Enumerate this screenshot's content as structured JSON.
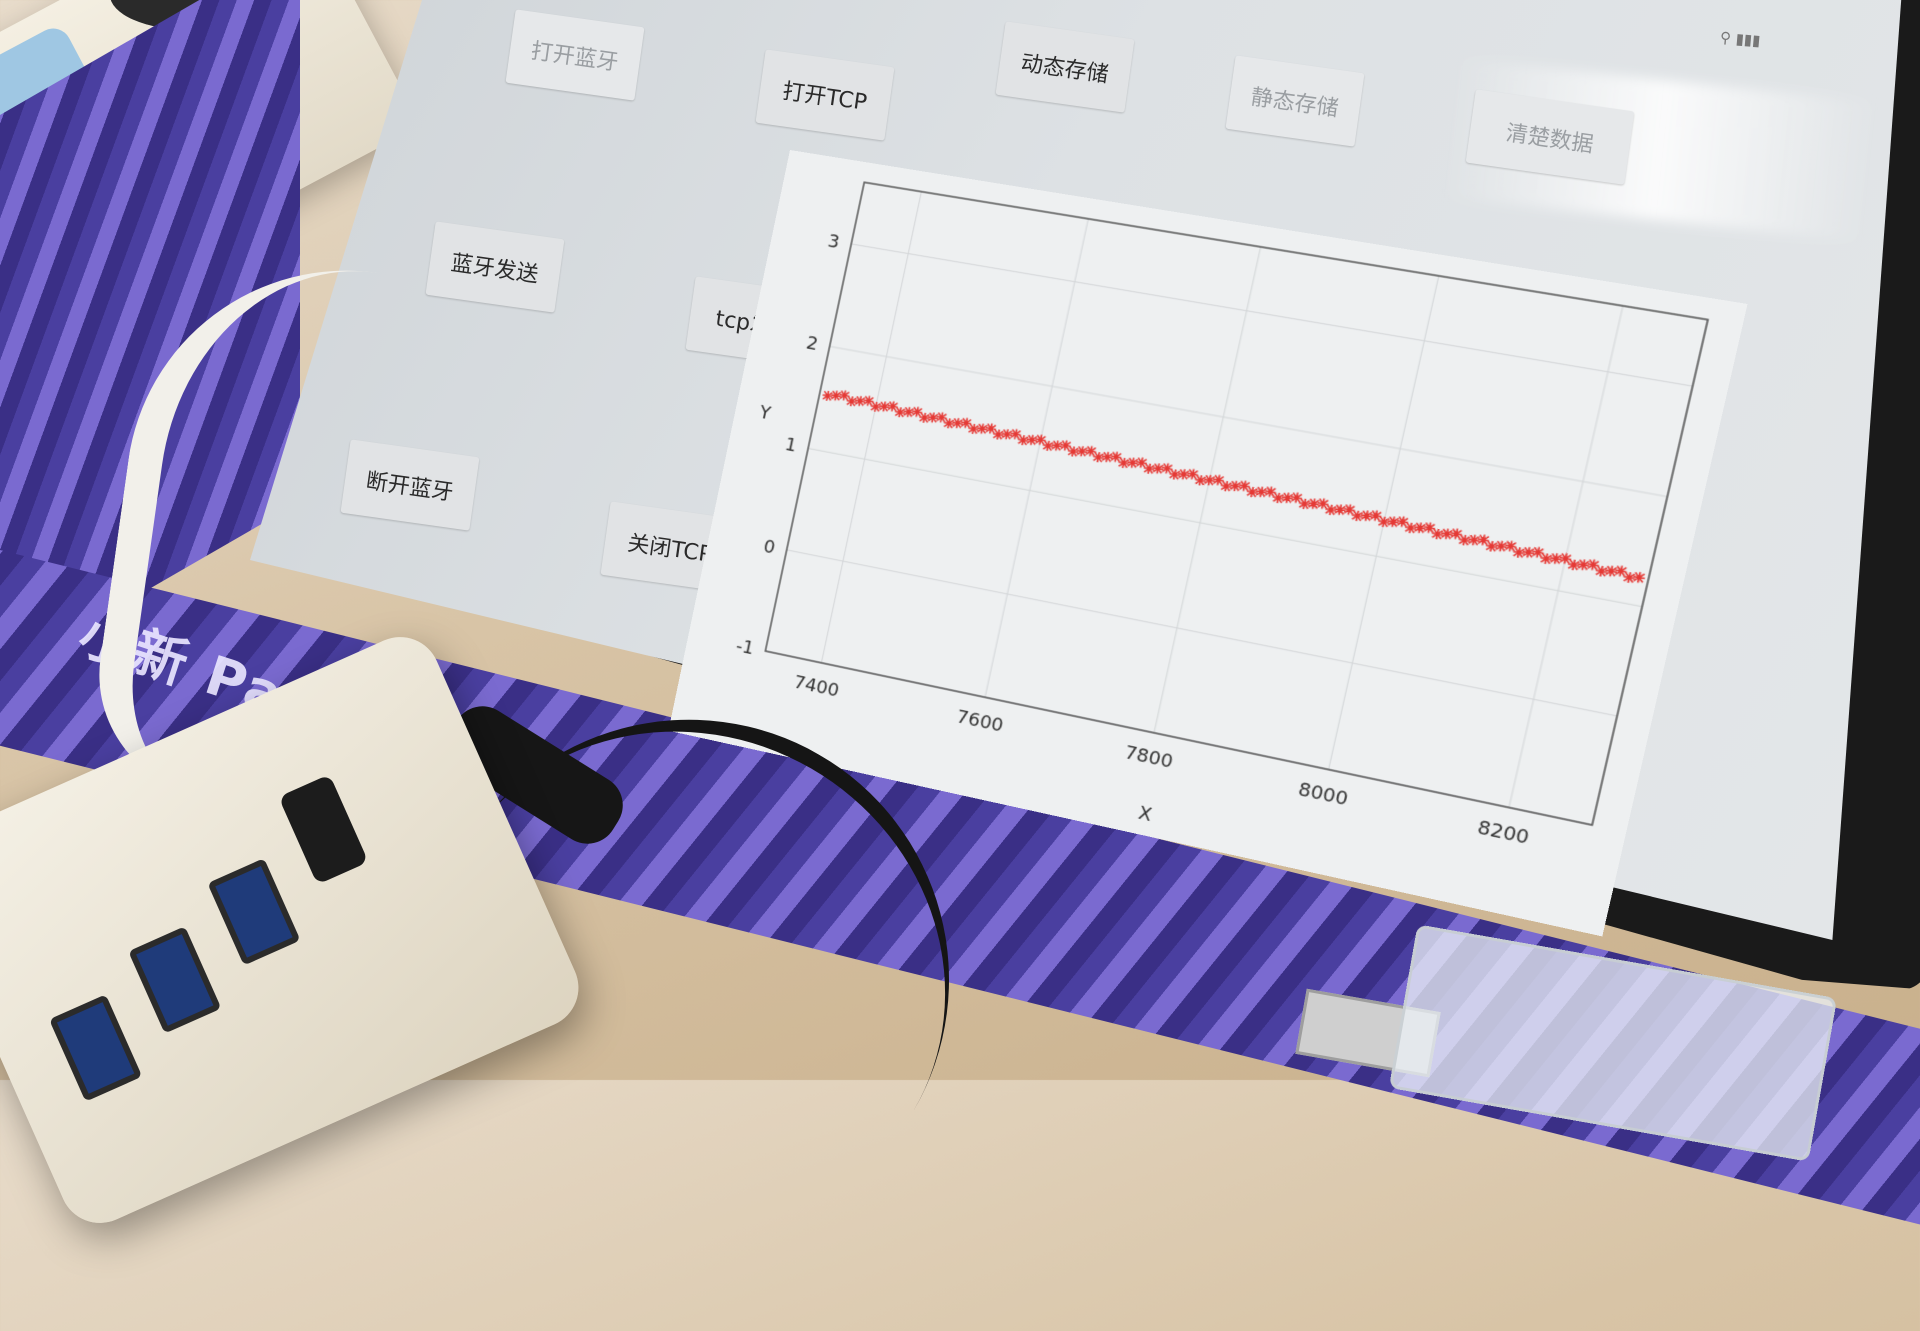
{
  "brand": "小新 Pad Plus",
  "app": {
    "buttons": {
      "open_bluetooth": "打开蓝牙",
      "open_tcp": "打开TCP",
      "dynamic_store": "动态存储",
      "static_store": "静态存储",
      "clear_data": "清楚数据",
      "bluetooth_send": "蓝牙发送",
      "tcp_send": "tcp发送",
      "disconnect_bluetooth": "断开蓝牙",
      "close_tcp": "关闭TCP"
    }
  },
  "chart_data": {
    "type": "scatter",
    "xlabel": "X",
    "ylabel": "Y",
    "xlim": [
      7330,
      8290
    ],
    "ylim": [
      -1,
      3.6
    ],
    "x_ticks": [
      7400,
      7600,
      7800,
      8000,
      8200
    ],
    "y_ticks": [
      -1,
      0,
      1,
      2,
      3
    ],
    "grid": true,
    "marker_color": "#e53935",
    "series": [
      {
        "start_x": 7340,
        "end_x": 8280,
        "start_y": 1.55,
        "end_y": 1.25,
        "step": 10,
        "note": "approximately linear band of red markers"
      }
    ]
  }
}
